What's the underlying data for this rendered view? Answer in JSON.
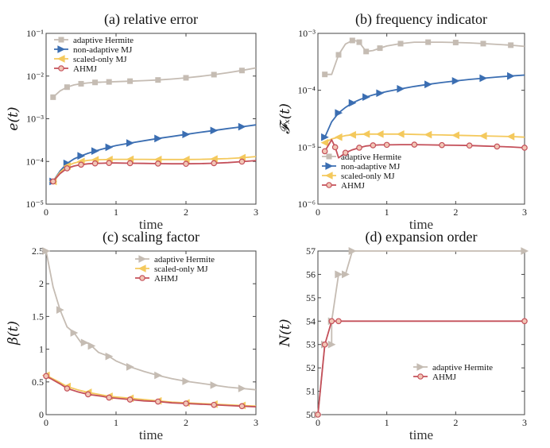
{
  "colors": {
    "adaptive_hermite": "#c5bcb3",
    "non_adaptive_mj": "#3b6eb2",
    "scaled_only_mj": "#f4c95d",
    "ahmj": "#c4505a",
    "ahmj_marker_fill": "#f2c6b6",
    "axis": "#444444"
  },
  "chart_data": [
    {
      "id": "a",
      "type": "line",
      "title": "(a) relative error",
      "xlabel": "time",
      "ylabel": "e(t)",
      "yscale": "log",
      "xlim": [
        0,
        3
      ],
      "ylim": [
        1e-05,
        0.1
      ],
      "xticks": [
        "0",
        "1",
        "2",
        "3"
      ],
      "yticks": [
        "10⁻⁵",
        "10⁻⁴",
        "10⁻³",
        "10⁻²",
        "10⁻¹"
      ],
      "legend_position": "top-left",
      "series": [
        {
          "name": "adaptive Hermite",
          "color": "adaptive_hermite",
          "marker": "square",
          "x": [
            0.1,
            0.2,
            0.3,
            0.4,
            0.5,
            0.6,
            0.7,
            0.8,
            0.9,
            1.0,
            1.2,
            1.4,
            1.6,
            1.8,
            2.0,
            2.2,
            2.4,
            2.6,
            2.8,
            3.0
          ],
          "y": [
            0.0032,
            0.0045,
            0.0055,
            0.0062,
            0.0066,
            0.0069,
            0.0071,
            0.0072,
            0.0073,
            0.0074,
            0.0076,
            0.0078,
            0.0081,
            0.0085,
            0.0091,
            0.0098,
            0.0108,
            0.012,
            0.0135,
            0.0155
          ]
        },
        {
          "name": "non-adaptive MJ",
          "color": "non_adaptive_mj",
          "marker": "triangle-right",
          "x": [
            0.1,
            0.2,
            0.3,
            0.4,
            0.5,
            0.6,
            0.7,
            0.8,
            0.9,
            1.0,
            1.2,
            1.4,
            1.6,
            1.8,
            2.0,
            2.2,
            2.4,
            2.6,
            2.8,
            3.0
          ],
          "y": [
            3.4e-05,
            6e-05,
            9e-05,
            0.000115,
            0.000135,
            0.000155,
            0.000175,
            0.000195,
            0.000215,
            0.000235,
            0.00027,
            0.000305,
            0.000345,
            0.000385,
            0.00043,
            0.00048,
            0.00053,
            0.00059,
            0.00065,
            0.00072
          ]
        },
        {
          "name": "scaled-only MJ",
          "color": "scaled_only_mj",
          "marker": "triangle-left",
          "x": [
            0.1,
            0.2,
            0.3,
            0.4,
            0.5,
            0.6,
            0.7,
            0.8,
            0.9,
            1.0,
            1.2,
            1.4,
            1.6,
            1.8,
            2.0,
            2.2,
            2.4,
            2.6,
            2.8,
            3.0
          ],
          "y": [
            3.4e-05,
            5.6e-05,
            7.8e-05,
            9.2e-05,
            0.0001,
            0.000106,
            0.000109,
            0.00011,
            0.000111,
            0.000112,
            0.000112,
            0.000112,
            0.000111,
            0.000111,
            0.000111,
            0.000112,
            0.000114,
            0.000117,
            0.000122,
            0.00013
          ]
        },
        {
          "name": "AHMJ",
          "color": "ahmj",
          "marker": "circle",
          "x": [
            0.1,
            0.2,
            0.3,
            0.4,
            0.5,
            0.6,
            0.7,
            0.8,
            0.9,
            1.0,
            1.2,
            1.4,
            1.6,
            1.8,
            2.0,
            2.2,
            2.4,
            2.6,
            2.8,
            3.0
          ],
          "y": [
            3.4e-05,
            5.2e-05,
            6.9e-05,
            7.8e-05,
            8.4e-05,
            8.8e-05,
            9e-05,
            9.1e-05,
            9.2e-05,
            9.2e-05,
            9.1e-05,
            9e-05,
            8.9e-05,
            8.8e-05,
            8.8e-05,
            8.9e-05,
            9.1e-05,
            9.4e-05,
            9.9e-05,
            0.000105
          ]
        }
      ]
    },
    {
      "id": "b",
      "type": "line",
      "title": "(b) frequency indicator",
      "xlabel": "time",
      "ylabel": "𝓕ₓ(t)",
      "yscale": "log",
      "xlim": [
        0,
        3
      ],
      "ylim": [
        1e-06,
        0.001
      ],
      "xticks": [
        "0",
        "1",
        "2",
        "3"
      ],
      "yticks": [
        "10⁻⁶",
        "10⁻⁵",
        "10⁻⁴",
        "10⁻³"
      ],
      "legend_position": "lower-right",
      "series": [
        {
          "name": "adaptive Hermite",
          "color": "adaptive_hermite",
          "marker": "square",
          "x": [
            0.1,
            0.2,
            0.3,
            0.4,
            0.5,
            0.55,
            0.6,
            0.65,
            0.7,
            0.8,
            0.9,
            1.0,
            1.2,
            1.4,
            1.6,
            1.8,
            2.0,
            2.2,
            2.4,
            2.6,
            2.8,
            3.0
          ],
          "y": [
            0.00019,
            0.00019,
            0.00042,
            0.00065,
            0.00075,
            0.00074,
            0.0007,
            0.00058,
            0.00048,
            0.0005,
            0.00055,
            0.0006,
            0.00066,
            0.0007,
            0.0007,
            0.0007,
            0.00069,
            0.00068,
            0.00066,
            0.00064,
            0.00062,
            0.00059
          ]
        },
        {
          "name": "non-adaptive MJ",
          "color": "non_adaptive_mj",
          "marker": "triangle-right",
          "x": [
            0.1,
            0.2,
            0.3,
            0.4,
            0.5,
            0.6,
            0.7,
            0.8,
            0.9,
            1.0,
            1.2,
            1.4,
            1.6,
            1.8,
            2.0,
            2.2,
            2.4,
            2.6,
            2.8,
            3.0
          ],
          "y": [
            1.5e-05,
            2.8e-05,
            4e-05,
            5e-05,
            6e-05,
            6.8e-05,
            7.6e-05,
            8.3e-05,
            8.9e-05,
            9.5e-05,
            0.000106,
            0.000117,
            0.000127,
            0.000137,
            0.000146,
            0.000155,
            0.000163,
            0.000171,
            0.000178,
            0.000185
          ]
        },
        {
          "name": "scaled-only MJ",
          "color": "scaled_only_mj",
          "marker": "triangle-left",
          "x": [
            0.1,
            0.2,
            0.3,
            0.4,
            0.5,
            0.6,
            0.7,
            0.8,
            0.9,
            1.0,
            1.2,
            1.4,
            1.6,
            1.8,
            2.0,
            2.2,
            2.4,
            2.6,
            2.8,
            3.0
          ],
          "y": [
            1.2e-05,
            1.4e-05,
            1.5e-05,
            1.6e-05,
            1.65e-05,
            1.68e-05,
            1.7e-05,
            1.7e-05,
            1.7e-05,
            1.7e-05,
            1.7e-05,
            1.68e-05,
            1.66e-05,
            1.64e-05,
            1.62e-05,
            1.6e-05,
            1.58e-05,
            1.56e-05,
            1.54e-05,
            1.5e-05
          ]
        },
        {
          "name": "AHMJ",
          "color": "ahmj",
          "marker": "circle",
          "x": [
            0.1,
            0.2,
            0.25,
            0.3,
            0.4,
            0.5,
            0.6,
            0.7,
            0.8,
            0.9,
            1.0,
            1.2,
            1.4,
            1.6,
            1.8,
            2.0,
            2.2,
            2.4,
            2.6,
            2.8,
            3.0
          ],
          "y": [
            8.5e-06,
            1.35e-05,
            1e-05,
            6.5e-06,
            8e-06,
            9e-06,
            9.8e-06,
            1.05e-05,
            1.08e-05,
            1.1e-05,
            1.1e-05,
            1.11e-05,
            1.11e-05,
            1.1e-05,
            1.09e-05,
            1.08e-05,
            1.07e-05,
            1.05e-05,
            1.03e-05,
            1.01e-05,
            9.8e-06
          ]
        }
      ]
    },
    {
      "id": "c",
      "type": "line",
      "title": "(c) scaling factor",
      "xlabel": "time",
      "ylabel": "β(t)",
      "yscale": "linear",
      "xlim": [
        0,
        3
      ],
      "ylim": [
        0,
        2.5
      ],
      "xticks": [
        "0",
        "1",
        "2",
        "3"
      ],
      "yticks": [
        "0",
        "0.5",
        "1",
        "1.5",
        "2",
        "2.5"
      ],
      "legend_position": "top-right",
      "series": [
        {
          "name": "adaptive Hermite",
          "color": "adaptive_hermite",
          "marker": "triangle-right",
          "x": [
            0,
            0.1,
            0.2,
            0.3,
            0.4,
            0.5,
            0.55,
            0.6,
            0.65,
            0.75,
            0.9,
            1.0,
            1.2,
            1.4,
            1.6,
            1.8,
            2.0,
            2.2,
            2.4,
            2.6,
            2.8,
            3.0
          ],
          "y": [
            2.5,
            1.95,
            1.6,
            1.34,
            1.25,
            1.1,
            1.1,
            1.09,
            1.05,
            0.95,
            0.89,
            0.82,
            0.73,
            0.66,
            0.6,
            0.55,
            0.51,
            0.48,
            0.45,
            0.42,
            0.4,
            0.38
          ]
        },
        {
          "name": "scaled-only MJ",
          "color": "scaled_only_mj",
          "marker": "triangle-left",
          "x": [
            0,
            0.2,
            0.3,
            0.45,
            0.6,
            0.8,
            0.9,
            1.0,
            1.2,
            1.4,
            1.6,
            1.8,
            2.0,
            2.2,
            2.4,
            2.6,
            2.8,
            3.0
          ],
          "y": [
            0.6,
            0.49,
            0.43,
            0.38,
            0.34,
            0.3,
            0.28,
            0.27,
            0.25,
            0.23,
            0.21,
            0.19,
            0.18,
            0.17,
            0.16,
            0.15,
            0.14,
            0.13
          ]
        },
        {
          "name": "AHMJ",
          "color": "ahmj",
          "marker": "circle",
          "x": [
            0,
            0.2,
            0.3,
            0.45,
            0.6,
            0.8,
            0.9,
            1.0,
            1.2,
            1.4,
            1.6,
            1.8,
            2.0,
            2.2,
            2.4,
            2.6,
            2.8,
            3.0
          ],
          "y": [
            0.59,
            0.47,
            0.4,
            0.35,
            0.31,
            0.28,
            0.26,
            0.25,
            0.23,
            0.21,
            0.2,
            0.18,
            0.17,
            0.16,
            0.15,
            0.14,
            0.13,
            0.12
          ]
        }
      ]
    },
    {
      "id": "d",
      "type": "line",
      "title": "(d) expansion order",
      "xlabel": "time",
      "ylabel": "N(t)",
      "yscale": "linear",
      "xlim": [
        0,
        3
      ],
      "ylim": [
        50,
        57
      ],
      "xticks": [
        "0",
        "1",
        "2",
        "3"
      ],
      "yticks": [
        "50",
        "51",
        "52",
        "53",
        "54",
        "55",
        "56",
        "57"
      ],
      "legend_position": "lower-right",
      "series": [
        {
          "name": "adaptive Hermite",
          "color": "adaptive_hermite",
          "marker": "triangle-right",
          "x": [
            0,
            0.1,
            0.1,
            0.2,
            0.2,
            0.3,
            0.3,
            0.4,
            0.4,
            0.5,
            0.5,
            3.0
          ],
          "y": [
            50,
            53,
            53,
            53,
            54,
            56,
            56,
            56,
            56,
            57,
            57,
            57
          ]
        },
        {
          "name": "AHMJ",
          "color": "ahmj",
          "marker": "circle",
          "x": [
            0,
            0.1,
            0.2,
            0.3,
            3.0
          ],
          "y": [
            50,
            53,
            54,
            54,
            54
          ]
        }
      ]
    }
  ]
}
